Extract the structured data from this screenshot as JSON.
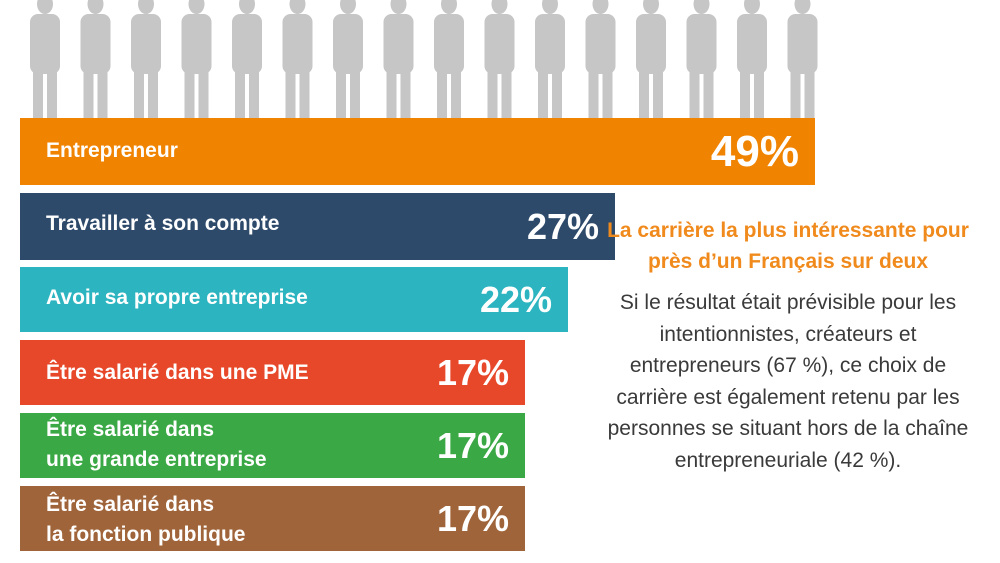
{
  "chart_data": {
    "type": "bar",
    "orientation": "horizontal",
    "categories": [
      "Entrepreneur",
      "Travailler à son compte",
      "Avoir sa propre entreprise",
      "Être salarié dans une PME",
      "Être salarié dans une grande entreprise",
      "Être salarié dans la fonction publique"
    ],
    "category_lines": [
      [
        "Entrepreneur"
      ],
      [
        "Travailler à son compte"
      ],
      [
        "Avoir sa propre entreprise"
      ],
      [
        "Être salarié dans une PME"
      ],
      [
        "Être salarié dans",
        "une grande entreprise"
      ],
      [
        "Être salarié dans",
        "la fonction publique"
      ]
    ],
    "values": [
      49,
      27,
      22,
      17,
      17,
      17
    ],
    "value_labels": [
      "49%",
      "27%",
      "22%",
      "17%",
      "17%",
      "17%"
    ],
    "colors": [
      "#f08300",
      "#2e4a6b",
      "#2cb5c0",
      "#e8482a",
      "#3aa845",
      "#a0643a"
    ]
  },
  "side": {
    "headline": "La carrière la plus intéressante pour près d’un Français sur deux",
    "body": "Si le résultat était prévisible pour les intentionnistes, créateurs et entrepreneurs (67 %), ce choix de carrière est également retenu par les personnes se situant hors de la chaîne entrepreneuriale (42 %)."
  }
}
